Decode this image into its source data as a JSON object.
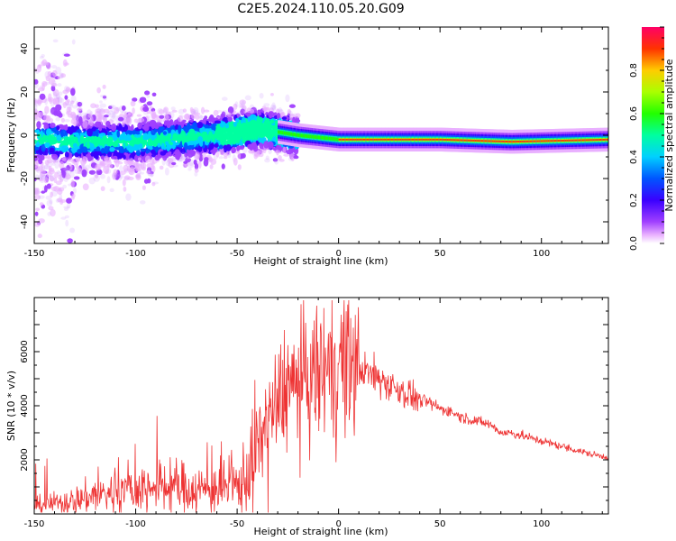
{
  "title": "C2E5.2024.110.05.20.G09",
  "chart_data": [
    {
      "type": "heatmap",
      "xlabel": "Height of straight line (km)",
      "ylabel": "Frequency (Hz)",
      "xlim": [
        -150,
        133
      ],
      "ylim": [
        -50,
        50
      ],
      "xticks": [
        -150,
        -100,
        -50,
        0,
        50,
        100
      ],
      "yticks": [
        -40,
        -20,
        0,
        20,
        40
      ],
      "colorbar": {
        "label": "Normalized spectral amplitude",
        "range": [
          0.0,
          1.0
        ],
        "ticks": [
          0.0,
          0.2,
          0.4,
          0.6,
          0.8
        ],
        "colormap": "rainbow"
      },
      "description_values": {
        "ridge_center_hz": [
          {
            "x": -140,
            "f": -3
          },
          {
            "x": -100,
            "f": -3
          },
          {
            "x": -60,
            "f": 0
          },
          {
            "x": -40,
            "f": 3
          },
          {
            "x": -20,
            "f": 0
          },
          {
            "x": 0,
            "f": -2
          },
          {
            "x": 10,
            "f": -2
          },
          {
            "x": 50,
            "f": -2
          },
          {
            "x": 85,
            "f": -3
          },
          {
            "x": 133,
            "f": -2
          }
        ]
      }
    },
    {
      "type": "line",
      "xlabel": "Height of straight line (km)",
      "ylabel": "SNR (10 * v/v)",
      "xlim": [
        -150,
        133
      ],
      "ylim": [
        0,
        8000
      ],
      "xticks": [
        -150,
        -100,
        -50,
        0,
        50,
        100
      ],
      "yticks": [
        2000,
        4000,
        6000
      ],
      "color": "#ee3333",
      "envelope": {
        "x": [
          -150,
          -140,
          -130,
          -120,
          -110,
          -100,
          -90,
          -80,
          -70,
          -60,
          -50,
          -45,
          -40,
          -35,
          -30,
          -25,
          -20,
          -15,
          -10,
          -5,
          0,
          5,
          10,
          15,
          20,
          25,
          30,
          35,
          40,
          45,
          50,
          55,
          60,
          65,
          70,
          75,
          80,
          85,
          90,
          95,
          100,
          105,
          110,
          115,
          120,
          125,
          133
        ],
        "y": [
          300,
          400,
          500,
          700,
          800,
          900,
          1000,
          1000,
          900,
          900,
          1000,
          1500,
          2500,
          3500,
          4200,
          4700,
          4800,
          4900,
          5200,
          5400,
          5600,
          5500,
          5400,
          5200,
          5000,
          4800,
          4600,
          4400,
          4200,
          4100,
          3900,
          3800,
          3600,
          3500,
          3400,
          3300,
          3000,
          3000,
          2900,
          2800,
          2700,
          2600,
          2500,
          2400,
          2300,
          2200,
          2100
        ]
      }
    }
  ]
}
